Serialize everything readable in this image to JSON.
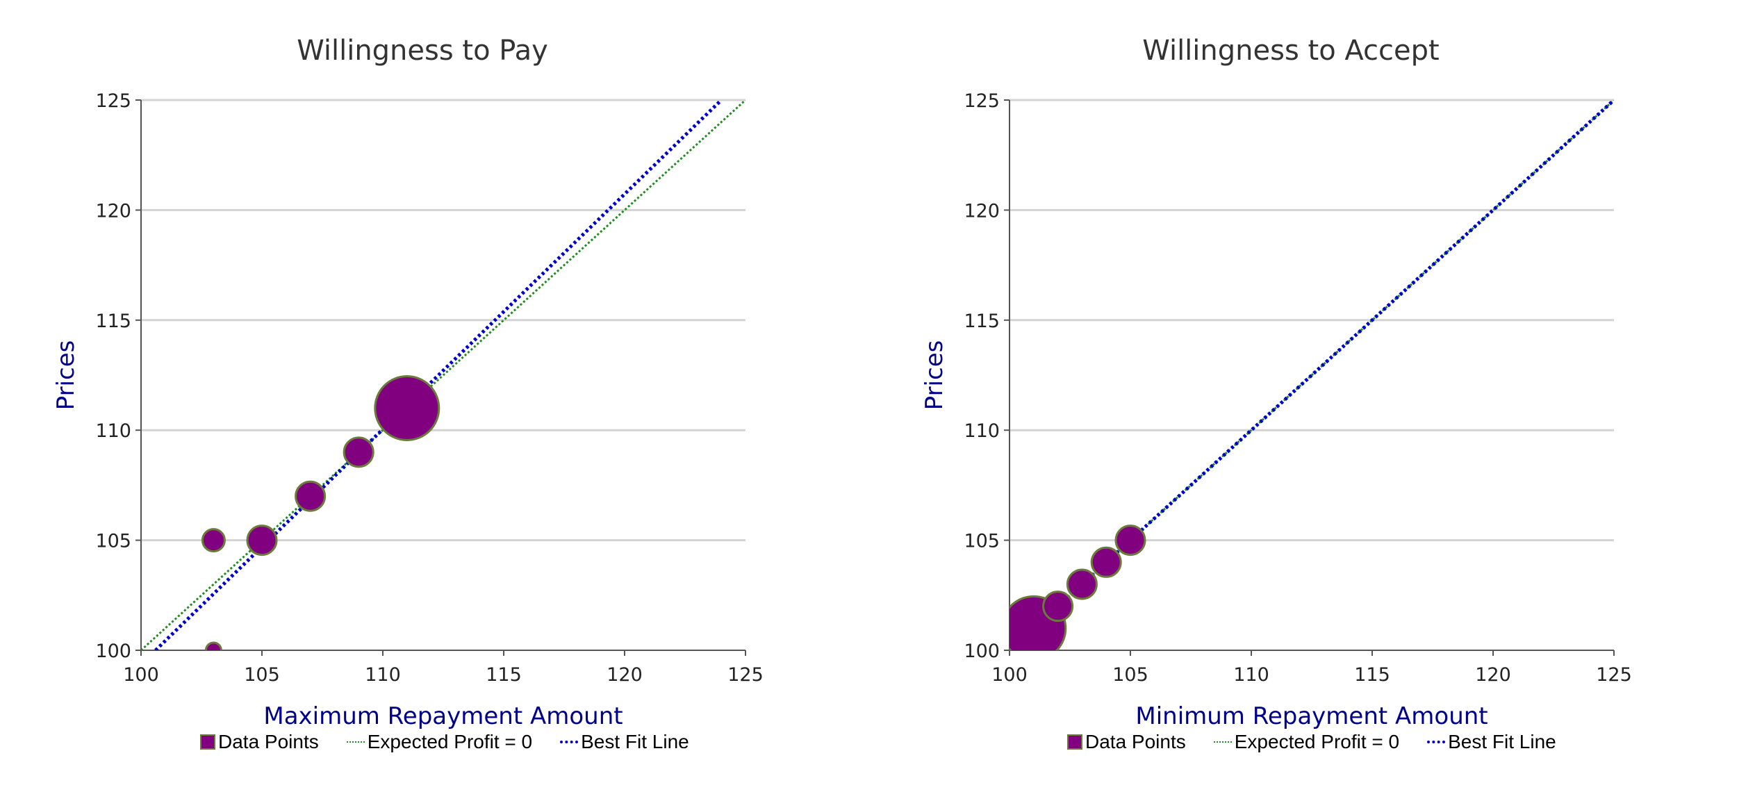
{
  "chart_data": [
    {
      "type": "scatter",
      "title": "Willingness to Pay",
      "xlabel": "Maximum Repayment Amount",
      "ylabel": "Prices",
      "xlim": [
        100,
        125
      ],
      "ylim": [
        100,
        125
      ],
      "xticks": [
        100,
        105,
        110,
        115,
        120,
        125
      ],
      "yticks": [
        100,
        105,
        110,
        115,
        120,
        125
      ],
      "grid": "horizontal",
      "legend_position": "bottom",
      "points": [
        {
          "x": 103,
          "y": 100,
          "size": 1
        },
        {
          "x": 103,
          "y": 105,
          "size": 2
        },
        {
          "x": 105,
          "y": 105,
          "size": 3
        },
        {
          "x": 107,
          "y": 107,
          "size": 3
        },
        {
          "x": 109,
          "y": 109,
          "size": 3
        },
        {
          "x": 111,
          "y": 111,
          "size": 8
        }
      ],
      "lines": [
        {
          "name": "Expected Profit = 0",
          "x": [
            100,
            125
          ],
          "y": [
            100,
            125
          ],
          "color": "#228b22",
          "style": "dotted"
        },
        {
          "name": "Best Fit Line",
          "x": [
            100.6,
            124
          ],
          "y": [
            100,
            125
          ],
          "color": "#0000cd",
          "style": "dotted"
        }
      ],
      "legend": [
        "Data Points",
        "Expected Profit = 0",
        "Best Fit Line"
      ],
      "colors": {
        "points": "#800080",
        "point_border": "#6b7b3a",
        "label": "#00008b"
      }
    },
    {
      "type": "scatter",
      "title": "Willingness to Accept",
      "xlabel": "Minimum Repayment Amount",
      "ylabel": "Prices",
      "xlim": [
        100,
        125
      ],
      "ylim": [
        100,
        125
      ],
      "xticks": [
        100,
        105,
        110,
        115,
        120,
        125
      ],
      "yticks": [
        100,
        105,
        110,
        115,
        120,
        125
      ],
      "grid": "horizontal",
      "legend_position": "bottom",
      "points": [
        {
          "x": 101,
          "y": 101,
          "size": 8
        },
        {
          "x": 102,
          "y": 102,
          "size": 3
        },
        {
          "x": 103,
          "y": 103,
          "size": 3
        },
        {
          "x": 104,
          "y": 104,
          "size": 3
        },
        {
          "x": 105,
          "y": 105,
          "size": 3
        }
      ],
      "lines": [
        {
          "name": "Expected Profit = 0",
          "x": [
            100,
            125
          ],
          "y": [
            100,
            125
          ],
          "color": "#228b22",
          "style": "dotted"
        },
        {
          "name": "Best Fit Line",
          "x": [
            100,
            125
          ],
          "y": [
            100,
            125
          ],
          "color": "#0000cd",
          "style": "dotted"
        }
      ],
      "legend": [
        "Data Points",
        "Expected Profit = 0",
        "Best Fit Line"
      ],
      "colors": {
        "points": "#800080",
        "point_border": "#6b7b3a",
        "label": "#00008b"
      }
    }
  ]
}
